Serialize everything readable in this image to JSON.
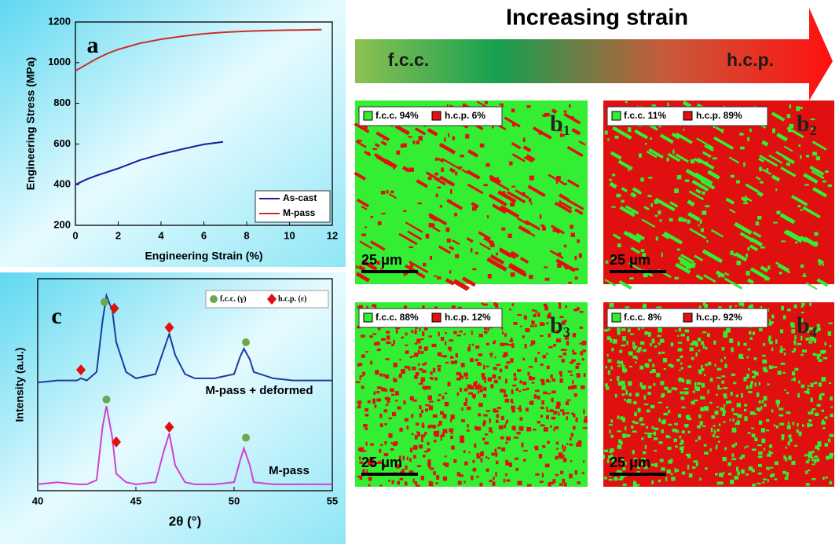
{
  "chart_data": [
    {
      "type": "line",
      "annotation": "a",
      "xlabel": "Engineering Strain (%)",
      "ylabel": "Engineering Stress (MPa)",
      "xlim": [
        0,
        12
      ],
      "ylim": [
        200,
        1200
      ],
      "xticks": [
        0,
        2,
        4,
        6,
        8,
        10,
        12
      ],
      "yticks": [
        200,
        400,
        600,
        800,
        1000,
        1200
      ],
      "series": [
        {
          "name": "As-cast",
          "color": "#1c1c9c",
          "x": [
            0,
            0.5,
            1,
            2,
            3,
            4,
            5,
            6,
            6.9
          ],
          "values": [
            400,
            425,
            445,
            480,
            520,
            550,
            575,
            598,
            610
          ]
        },
        {
          "name": "M-pass",
          "color": "#c8302b",
          "x": [
            0,
            0.5,
            1,
            1.5,
            2,
            3,
            4,
            5,
            6,
            7,
            8,
            9,
            10,
            11.5
          ],
          "values": [
            960,
            990,
            1020,
            1045,
            1065,
            1095,
            1115,
            1130,
            1142,
            1150,
            1155,
            1158,
            1160,
            1162
          ]
        }
      ]
    },
    {
      "type": "line",
      "annotation": "c",
      "xlabel": "2θ (°)",
      "ylabel": "Intensity (a.u.)",
      "xlim": [
        40,
        55
      ],
      "ylim": [
        0,
        100
      ],
      "xticks": [
        40,
        45,
        50,
        55
      ],
      "x": [
        40,
        41,
        42,
        42.2,
        42.5,
        43,
        43.3,
        43.5,
        43.8,
        44,
        44.5,
        45,
        46,
        46.4,
        46.7,
        47,
        47.5,
        48,
        49,
        50,
        50.3,
        50.5,
        50.8,
        51,
        52,
        53,
        54,
        55
      ],
      "series": [
        {
          "name": "M-pass + deformed",
          "color": "#1c3ca0",
          "values": [
            51,
            52,
            52,
            53,
            52,
            56,
            80,
            92,
            85,
            70,
            56,
            53,
            55,
            66,
            74,
            64,
            55,
            53,
            53,
            55,
            63,
            67,
            62,
            56,
            53,
            52,
            52,
            52
          ]
        },
        {
          "name": "M-pass",
          "color": "#d040d0",
          "values": [
            3,
            4,
            3,
            3,
            3,
            5,
            30,
            40,
            25,
            8,
            4,
            3,
            4,
            18,
            27,
            12,
            4,
            3,
            3,
            4,
            14,
            20,
            12,
            4,
            3,
            3,
            3,
            3
          ]
        }
      ],
      "markers": [
        {
          "name": "f.c.c. (γ)",
          "color": "#6aa84f",
          "shape": "circle",
          "x": [
            43.4,
            50.6,
            43.5,
            50.6
          ],
          "values": [
            89,
            70,
            43,
            25
          ]
        },
        {
          "name": "h.c.p. (ε)",
          "color": "#e01010",
          "shape": "diamond",
          "x": [
            42.2,
            43.9,
            46.7,
            44,
            46.7
          ],
          "values": [
            57,
            86,
            77,
            23,
            30
          ]
        }
      ]
    }
  ],
  "banner": {
    "title": "Increasing strain",
    "left": "f.c.c.",
    "right": "h.c.p."
  },
  "maps": [
    {
      "label": "b",
      "sub": "1",
      "legend": [
        "f.c.c. 94%",
        "h.c.p. 6%"
      ],
      "scale": "25 μm"
    },
    {
      "label": "b",
      "sub": "2",
      "legend": [
        "f.c.c. 11%",
        "h.c.p. 89%"
      ],
      "scale": "25 μm"
    },
    {
      "label": "b",
      "sub": "3",
      "legend": [
        "f.c.c. 88%",
        "h.c.p. 12%"
      ],
      "scale": "25 μm"
    },
    {
      "label": "b",
      "sub": "4",
      "legend": [
        "f.c.c. 8%",
        "h.c.p. 92%"
      ],
      "scale": "25 μm"
    }
  ]
}
